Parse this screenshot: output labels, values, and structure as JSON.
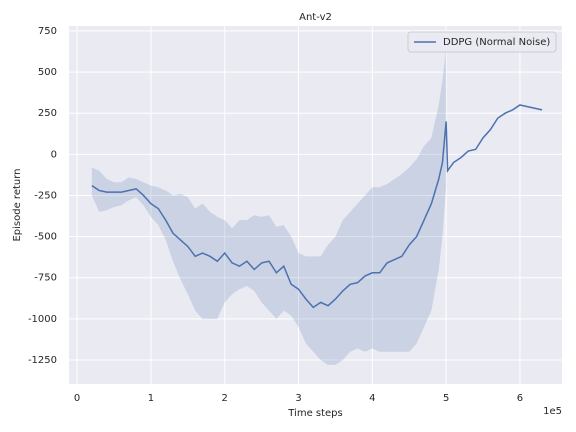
{
  "chart_data": {
    "type": "line",
    "title": "Ant-v2",
    "x_label": "Time steps",
    "y_label": "Episode return",
    "x_offset_text": "1e5",
    "xlim": [
      -0.11,
      6.57
    ],
    "ylim": [
      -1396,
      780
    ],
    "xticks": [
      0,
      1,
      2,
      3,
      4,
      5,
      6
    ],
    "yticks": [
      750,
      500,
      250,
      0,
      -250,
      -500,
      -750,
      -1000,
      -1250
    ],
    "grid": true,
    "legend": "upper right",
    "series": [
      {
        "name": "DDPG (Normal Noise)",
        "color": "#4c72b0",
        "x": [
          0.2,
          0.3,
          0.4,
          0.5,
          0.6,
          0.7,
          0.8,
          0.9,
          1.0,
          1.1,
          1.2,
          1.3,
          1.4,
          1.5,
          1.6,
          1.7,
          1.8,
          1.9,
          2.0,
          2.1,
          2.2,
          2.3,
          2.4,
          2.5,
          2.6,
          2.7,
          2.8,
          2.9,
          3.0,
          3.1,
          3.2,
          3.3,
          3.4,
          3.5,
          3.6,
          3.7,
          3.8,
          3.9,
          4.0,
          4.1,
          4.2,
          4.3,
          4.4,
          4.5,
          4.6,
          4.7,
          4.8,
          4.9,
          4.95,
          5.0,
          5.02,
          5.1,
          5.2,
          5.3,
          5.4,
          5.5,
          5.6,
          5.7,
          5.8,
          5.9,
          6.0,
          6.1,
          6.2,
          6.3
        ],
        "values": [
          -190,
          -220,
          -230,
          -230,
          -230,
          -220,
          -210,
          -250,
          -300,
          -330,
          -400,
          -480,
          -520,
          -560,
          -620,
          -600,
          -620,
          -650,
          -600,
          -660,
          -680,
          -650,
          -700,
          -660,
          -650,
          -720,
          -680,
          -790,
          -820,
          -880,
          -930,
          -900,
          -920,
          -880,
          -830,
          -790,
          -780,
          -740,
          -720,
          -720,
          -660,
          -640,
          -620,
          -550,
          -500,
          -400,
          -300,
          -150,
          -50,
          200,
          -100,
          -50,
          -20,
          20,
          30,
          100,
          150,
          220,
          250,
          270,
          300,
          290,
          280,
          270
        ],
        "lower": [
          -250,
          -350,
          -340,
          -320,
          -310,
          -280,
          -260,
          -310,
          -380,
          -430,
          -520,
          -650,
          -760,
          -850,
          -950,
          -1000,
          -1000,
          -1000,
          -900,
          -850,
          -820,
          -800,
          -830,
          -900,
          -950,
          -1000,
          -950,
          -980,
          -1050,
          -1150,
          -1200,
          -1250,
          -1280,
          -1280,
          -1250,
          -1200,
          -1180,
          -1200,
          -1180,
          -1200,
          -1200,
          -1200,
          -1200,
          -1200,
          -1150,
          -1050,
          -950,
          -700,
          -500,
          -200,
          null,
          null,
          null,
          null,
          null,
          null,
          null,
          null,
          null,
          null,
          null,
          null,
          null,
          null
        ],
        "upper": [
          -80,
          -100,
          -150,
          -170,
          -170,
          -140,
          -150,
          -170,
          -190,
          -200,
          -220,
          -250,
          -240,
          -260,
          -330,
          -300,
          -350,
          -380,
          -400,
          -450,
          -400,
          -400,
          -370,
          -380,
          -370,
          -440,
          -430,
          -500,
          -600,
          -620,
          -620,
          -620,
          -550,
          -500,
          -400,
          -350,
          -300,
          -250,
          -200,
          -200,
          -180,
          -150,
          -120,
          -80,
          -30,
          50,
          100,
          300,
          450,
          650,
          null,
          null,
          null,
          null,
          null,
          null,
          null,
          null,
          null,
          null,
          null,
          null,
          null,
          null
        ]
      }
    ]
  }
}
